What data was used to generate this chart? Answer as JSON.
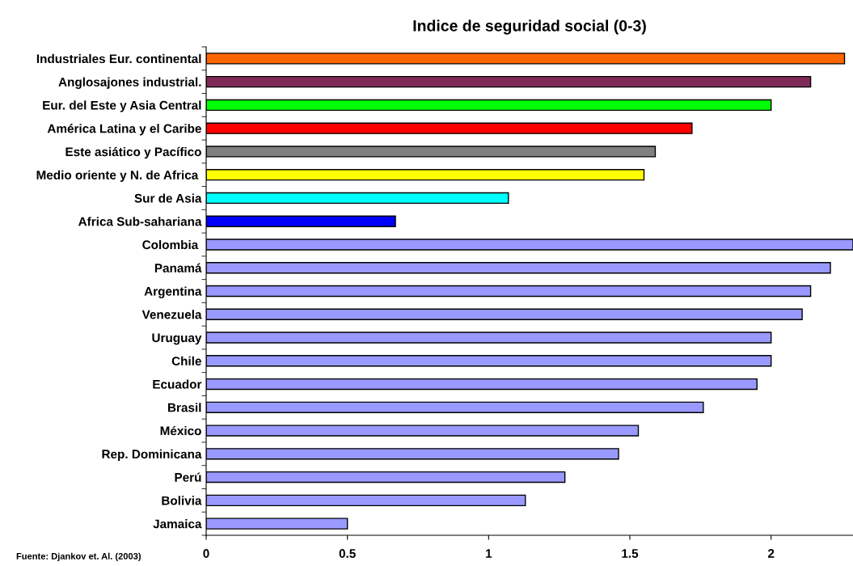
{
  "chart_data": {
    "type": "bar",
    "orientation": "horizontal",
    "title": "Indice de seguridad social (0-3)",
    "categories": [
      "Industriales Eur. continental",
      "Anglosajones industrial.",
      "Eur. del Este y Asia Central",
      "América Latina y el Caribe",
      "Este asiático y Pacífico",
      "Medio oriente y N. de Africa ",
      "Sur de Asia",
      "Africa Sub-sahariana",
      "Colombia ",
      "Panamá",
      "Argentina",
      "Venezuela",
      "Uruguay",
      "Chile",
      "Ecuador",
      "Brasil",
      "México",
      "Rep. Dominicana",
      "Perú",
      "Bolivia",
      "Jamaica"
    ],
    "values": [
      2.26,
      2.14,
      2.0,
      1.72,
      1.59,
      1.55,
      1.07,
      0.67,
      2.29,
      2.21,
      2.14,
      2.11,
      2.0,
      2.0,
      1.95,
      1.76,
      1.53,
      1.46,
      1.27,
      1.13,
      0.5
    ],
    "colors": [
      "#ff6600",
      "#802a5a",
      "#00ff00",
      "#ff0000",
      "#808080",
      "#ffff00",
      "#00ffff",
      "#0000ff",
      "#9999ff",
      "#9999ff",
      "#9999ff",
      "#9999ff",
      "#9999ff",
      "#9999ff",
      "#9999ff",
      "#9999ff",
      "#9999ff",
      "#9999ff",
      "#9999ff",
      "#9999ff",
      "#9999ff"
    ],
    "xlim": [
      0,
      2.29
    ],
    "xticks": [
      0,
      0.5,
      1,
      1.5,
      2
    ],
    "grid": false,
    "legend": false,
    "annotations": [
      "Fuente: Djankov et. Al. (2003)"
    ]
  }
}
